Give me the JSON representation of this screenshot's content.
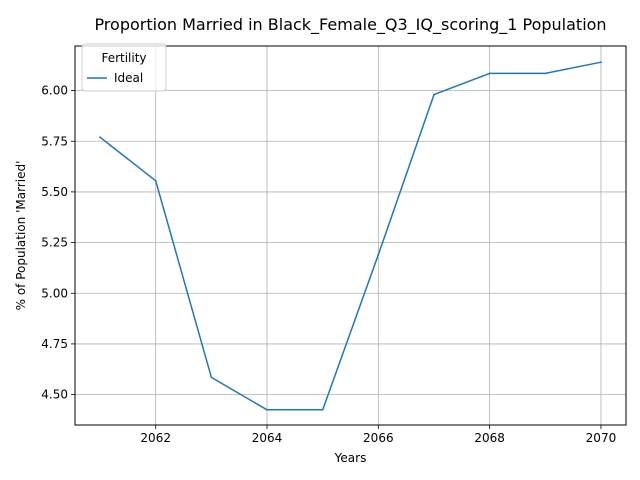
{
  "chart_data": {
    "type": "line",
    "title": "Proportion Married in Black_Female_Q3_IQ_scoring_1 Population",
    "xlabel": "Years",
    "ylabel": "% of Population 'Married'",
    "xlim": [
      2060.55,
      2070.45
    ],
    "ylim": [
      4.35,
      6.22
    ],
    "x_ticks": [
      2062,
      2064,
      2066,
      2068,
      2070
    ],
    "x_tick_labels": [
      "2062",
      "2064",
      "2066",
      "2068",
      "2070"
    ],
    "y_ticks": [
      4.5,
      4.75,
      5.0,
      5.25,
      5.5,
      5.75,
      6.0
    ],
    "y_tick_labels": [
      "4.50",
      "4.75",
      "5.00",
      "5.25",
      "5.50",
      "5.75",
      "6.00"
    ],
    "grid": true,
    "legend": {
      "title": "Fertility",
      "placement": "top-left"
    },
    "x": [
      2061,
      2062,
      2063,
      2064,
      2065,
      2066,
      2067,
      2068,
      2069,
      2070
    ],
    "series": [
      {
        "name": "Ideal",
        "color": "#1f77b4",
        "values": [
          5.77,
          5.555,
          4.585,
          4.425,
          4.425,
          5.19,
          5.98,
          6.085,
          6.085,
          6.14
        ]
      }
    ]
  }
}
